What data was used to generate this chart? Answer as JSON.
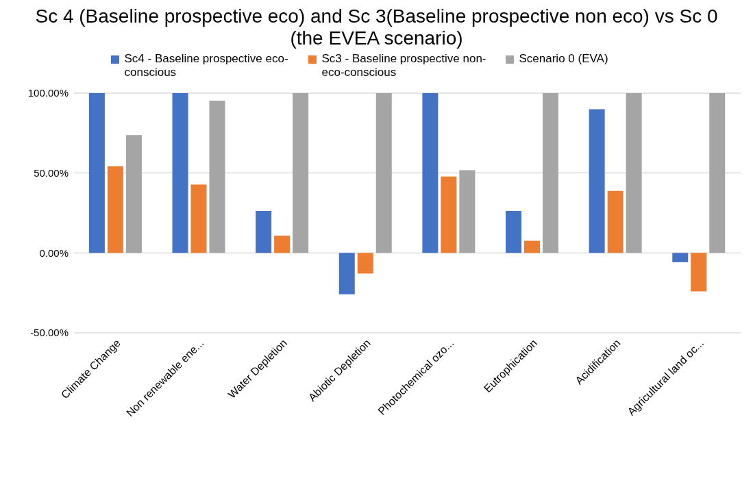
{
  "chart_data": {
    "type": "bar",
    "title": "Sc 4 (Baseline prospective eco) and Sc 3(Baseline prospective non eco) vs Sc 0 (the EVEA scenario)",
    "categories": [
      "Climate Change",
      "Non renewable ene...",
      "Water Depletion",
      "Abiotic Depletion",
      "Photochemical ozo...",
      "Eutrophication",
      "Acidification",
      "Agricultural land oc..."
    ],
    "series": [
      {
        "name": "Sc4 - Baseline prospective eco-conscious",
        "color": "#4472c4",
        "values": [
          100,
          100,
          26.3,
          -25.9,
          100,
          26.3,
          89.9,
          -5.8
        ]
      },
      {
        "name": "Sc3 - Baseline prospective non-eco-conscious",
        "color": "#ed7d31",
        "values": [
          54.3,
          42.8,
          10.8,
          -12.9,
          47.8,
          7.6,
          38.8,
          -24.1
        ]
      },
      {
        "name": "Scenario 0 (EVA)",
        "color": "#a5a5a5",
        "values": [
          73.7,
          95.3,
          100,
          100,
          51.8,
          100,
          100,
          100
        ]
      }
    ],
    "ylim": [
      -50,
      100
    ],
    "yticks": [
      {
        "value": -50,
        "label": "-50.00%"
      },
      {
        "value": 0,
        "label": "0.00%"
      },
      {
        "value": 50,
        "label": "50.00%"
      },
      {
        "value": 100,
        "label": "100.00%"
      }
    ],
    "grid": "y",
    "legend": "top"
  }
}
